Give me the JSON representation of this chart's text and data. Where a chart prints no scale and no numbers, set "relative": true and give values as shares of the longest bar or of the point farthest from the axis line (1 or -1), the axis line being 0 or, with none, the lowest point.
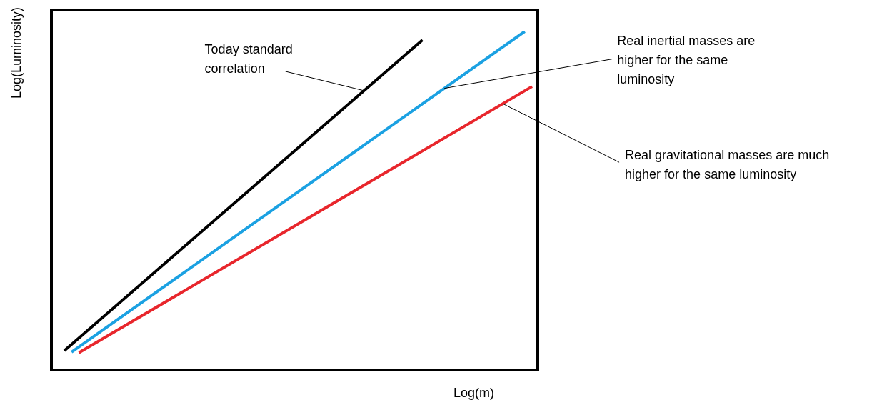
{
  "chart_data": {
    "type": "line",
    "relative": true,
    "xlabel": "Log(m)",
    "ylabel": "Log(Luminosity)",
    "grid": false,
    "legend": false,
    "marker": "none",
    "line_style": "solid",
    "categories": [
      null,
      null,
      null,
      null,
      null,
      null,
      null,
      null,
      null,
      null,
      null,
      null,
      null,
      null,
      null,
      null,
      null,
      null,
      null,
      null,
      null,
      null,
      null,
      null,
      null,
      null,
      null,
      null,
      null,
      null,
      null,
      null,
      null,
      null,
      null,
      null,
      null,
      null,
      null,
      null,
      null,
      null,
      null,
      null,
      null,
      null,
      null,
      null,
      null,
      null,
      null,
      null,
      null,
      null,
      null,
      null,
      null,
      null,
      null,
      null,
      null,
      null,
      null,
      null,
      null
    ],
    "series": [
      {
        "color": "#000000",
        "values": [
          0.061,
          null,
          null,
          null,
          null,
          null,
          null,
          null,
          null,
          null,
          null,
          null,
          null,
          null,
          null,
          null,
          null,
          null,
          null,
          null,
          null,
          null,
          null,
          null,
          null,
          null,
          null,
          null,
          null,
          null,
          null,
          null,
          null,
          null,
          null,
          null,
          null,
          null,
          null,
          null,
          null,
          null,
          null,
          null,
          null,
          null,
          null,
          null,
          null,
          0.975,
          null,
          null,
          null,
          null,
          null,
          null,
          null,
          null,
          null,
          null,
          null,
          null,
          null,
          null,
          null
        ]
      },
      {
        "color": "#1ba1e2",
        "values": [
          null,
          0.057,
          null,
          null,
          null,
          null,
          null,
          null,
          null,
          null,
          null,
          null,
          null,
          null,
          null,
          null,
          null,
          null,
          null,
          null,
          null,
          null,
          null,
          null,
          null,
          null,
          null,
          null,
          null,
          null,
          null,
          null,
          null,
          null,
          null,
          null,
          null,
          null,
          null,
          null,
          null,
          null,
          null,
          null,
          null,
          null,
          null,
          null,
          null,
          null,
          null,
          null,
          null,
          null,
          null,
          null,
          null,
          null,
          null,
          null,
          null,
          null,
          null,
          1,
          null
        ]
      },
      {
        "color": "#e8262c",
        "values": [
          null,
          null,
          0.055,
          null,
          null,
          null,
          null,
          null,
          null,
          null,
          null,
          null,
          null,
          null,
          null,
          null,
          null,
          null,
          null,
          null,
          null,
          null,
          null,
          null,
          null,
          null,
          null,
          null,
          null,
          null,
          null,
          null,
          null,
          null,
          null,
          null,
          null,
          null,
          null,
          null,
          null,
          null,
          null,
          null,
          null,
          null,
          null,
          null,
          null,
          null,
          null,
          null,
          null,
          null,
          null,
          null,
          null,
          null,
          null,
          null,
          null,
          null,
          null,
          null,
          0.838
        ]
      }
    ],
    "annotations": [
      "Today standard correlation",
      "Real inertial masses are higher for the same luminosity",
      "Real gravitational masses are much higher for the same luminosity"
    ]
  }
}
